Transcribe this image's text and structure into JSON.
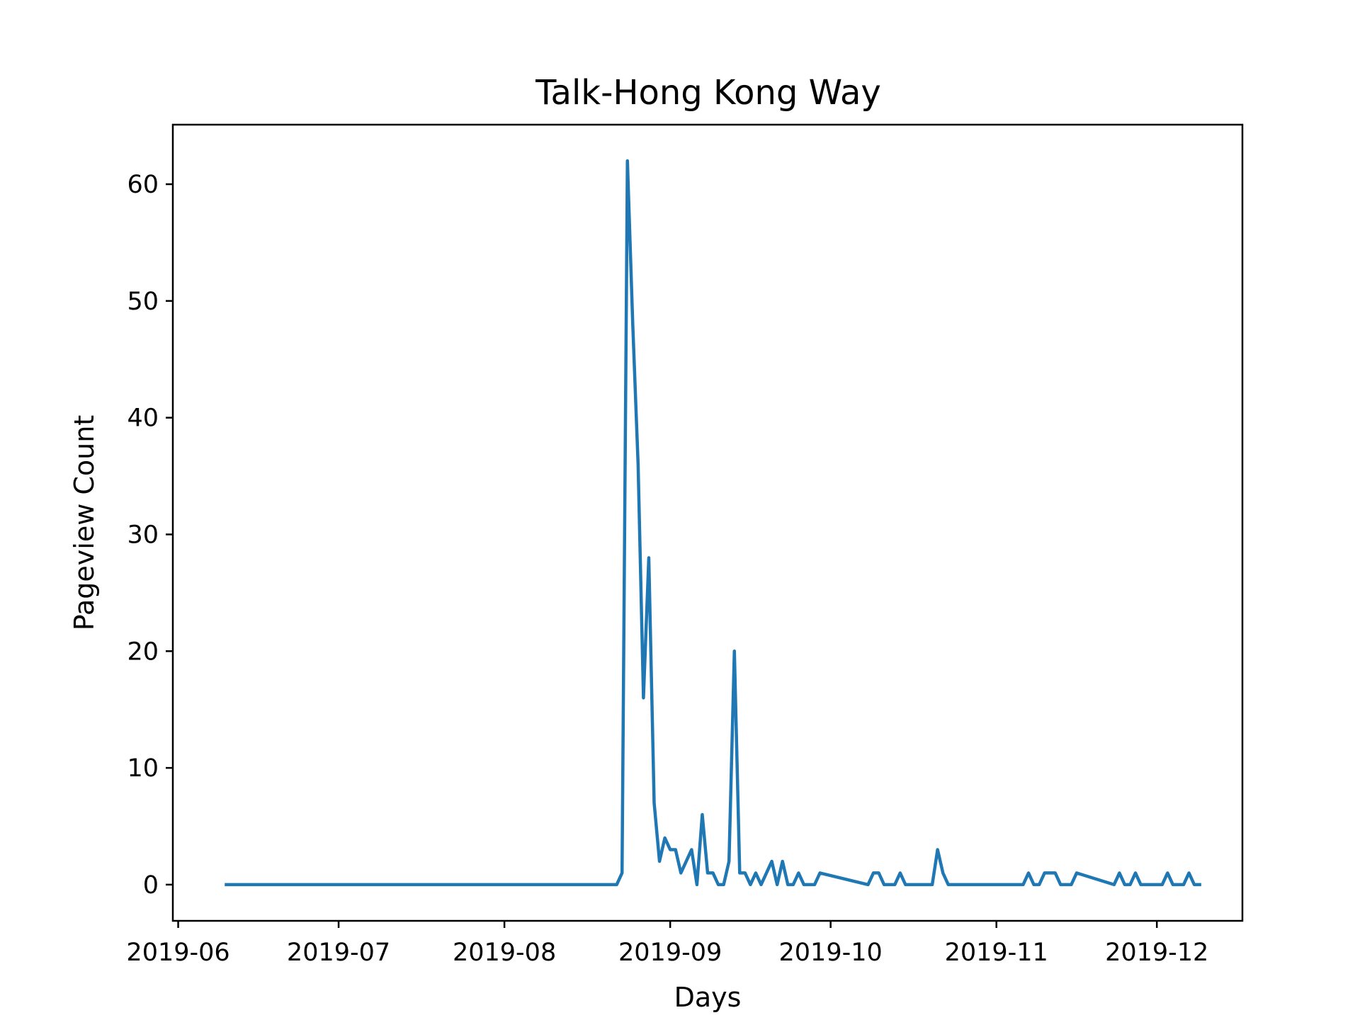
{
  "chart_data": {
    "type": "line",
    "title": "Talk-Hong Kong Way",
    "xlabel": "Days",
    "ylabel": "Pageview Count",
    "xlim": [
      "2019-05-31",
      "2019-12-17"
    ],
    "ylim": [
      -3.1,
      65.1
    ],
    "grid": false,
    "legend": "none",
    "x_ticks": [
      "2019-06-01",
      "2019-07-01",
      "2019-08-01",
      "2019-09-01",
      "2019-10-01",
      "2019-11-01",
      "2019-12-01"
    ],
    "x_tick_labels": [
      "2019-06",
      "2019-07",
      "2019-08",
      "2019-09",
      "2019-10",
      "2019-11",
      "2019-12"
    ],
    "y_ticks": [
      0,
      10,
      20,
      30,
      40,
      50,
      60
    ],
    "y_tick_labels": [
      "0",
      "10",
      "20",
      "30",
      "40",
      "50",
      "60"
    ],
    "series": [
      {
        "color": "#1f77b4",
        "x": [
          "2019-06-10",
          "2019-08-22",
          "2019-08-23",
          "2019-08-24",
          "2019-08-25",
          "2019-08-26",
          "2019-08-27",
          "2019-08-28",
          "2019-08-29",
          "2019-08-30",
          "2019-08-31",
          "2019-09-01",
          "2019-09-02",
          "2019-09-03",
          "2019-09-04",
          "2019-09-05",
          "2019-09-06",
          "2019-09-07",
          "2019-09-08",
          "2019-09-09",
          "2019-09-10",
          "2019-09-11",
          "2019-09-12",
          "2019-09-13",
          "2019-09-14",
          "2019-09-15",
          "2019-09-16",
          "2019-09-17",
          "2019-09-18",
          "2019-09-19",
          "2019-09-20",
          "2019-09-21",
          "2019-09-22",
          "2019-09-23",
          "2019-09-24",
          "2019-09-25",
          "2019-09-26",
          "2019-09-27",
          "2019-09-28",
          "2019-09-29",
          "2019-10-08",
          "2019-10-09",
          "2019-10-10",
          "2019-10-11",
          "2019-10-12",
          "2019-10-13",
          "2019-10-14",
          "2019-10-15",
          "2019-10-20",
          "2019-10-21",
          "2019-10-22",
          "2019-10-23",
          "2019-11-06",
          "2019-11-07",
          "2019-11-08",
          "2019-11-09",
          "2019-11-10",
          "2019-11-11",
          "2019-11-12",
          "2019-11-13",
          "2019-11-14",
          "2019-11-15",
          "2019-11-16",
          "2019-11-23",
          "2019-11-24",
          "2019-11-25",
          "2019-11-26",
          "2019-11-27",
          "2019-11-28",
          "2019-12-02",
          "2019-12-03",
          "2019-12-04",
          "2019-12-05",
          "2019-12-06",
          "2019-12-07",
          "2019-12-08",
          "2019-12-09"
        ],
        "y": [
          0,
          0,
          1,
          62,
          48,
          36,
          16,
          28,
          7,
          2,
          4,
          3,
          3,
          1,
          2,
          3,
          0,
          6,
          1,
          1,
          0,
          0,
          2,
          20,
          1,
          1,
          0,
          1,
          0,
          1,
          2,
          0,
          2,
          0,
          0,
          1,
          0,
          0,
          0,
          1,
          0,
          1,
          1,
          0,
          0,
          0,
          1,
          0,
          0,
          3,
          1,
          0,
          0,
          1,
          0,
          0,
          1,
          1,
          1,
          0,
          0,
          0,
          1,
          0,
          1,
          0,
          0,
          1,
          0,
          0,
          1,
          0,
          0,
          0,
          1,
          0,
          0
        ]
      }
    ]
  }
}
